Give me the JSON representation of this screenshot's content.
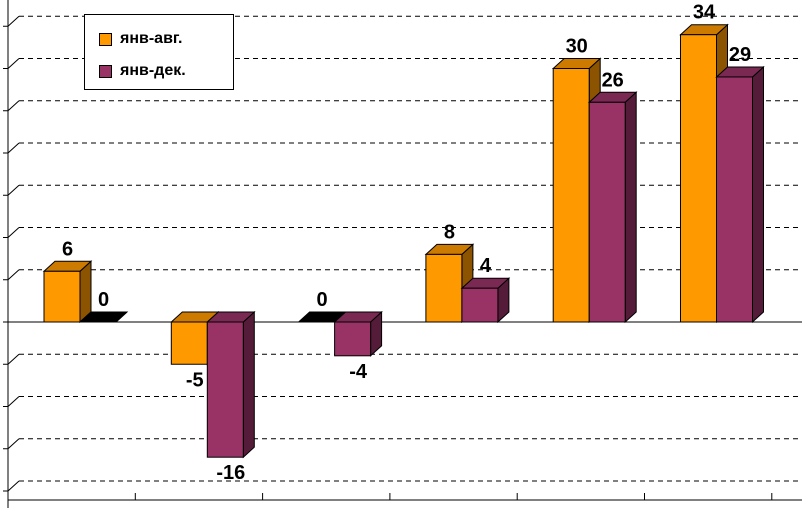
{
  "chart_data": {
    "type": "bar",
    "title": "",
    "xlabel": "",
    "ylabel": "",
    "ylim": [
      -20,
      36
    ],
    "grid": true,
    "legend_position": "top-left",
    "categories": [
      "",
      "",
      "",
      "",
      "",
      ""
    ],
    "series": [
      {
        "name": "янв-авг.",
        "color": "#FF9900",
        "values": [
          6,
          -5,
          0,
          8,
          30,
          34
        ]
      },
      {
        "name": "янв-дек.",
        "color": "#993366",
        "values": [
          0,
          -16,
          -4,
          4,
          26,
          29
        ]
      }
    ],
    "value_labels": [
      [
        "6",
        "-5",
        "0",
        "8",
        "30",
        "34"
      ],
      [
        "0",
        "-16",
        "-4",
        "4",
        "26",
        "29"
      ]
    ]
  },
  "legend": {
    "items": [
      {
        "label": "янв-авг.",
        "color": "#FF9900"
      },
      {
        "label": "янв-дек.",
        "color": "#993366"
      }
    ]
  }
}
